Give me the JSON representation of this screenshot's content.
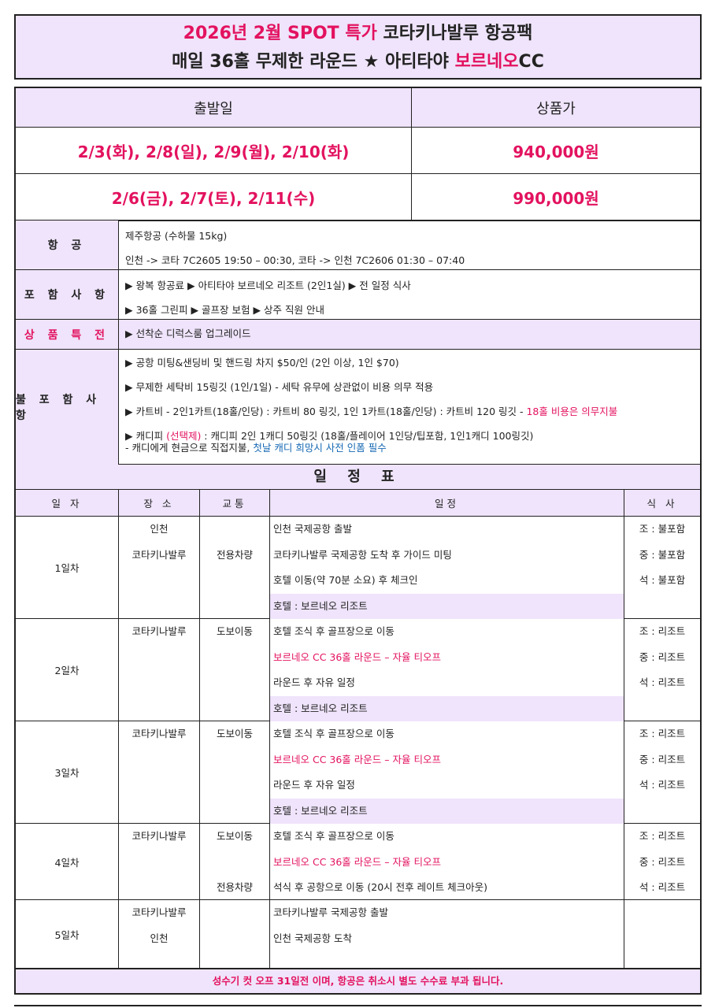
{
  "title": {
    "line1_accent": "2026년 2월 SPOT 특가",
    "line1_rest": " 코타키나발루 항공팩",
    "line2_a": "매일 36홀 무제한 라운드 ★ 아티타야 ",
    "line2_accent": "보르네오",
    "line2_b": "CC"
  },
  "price_table": {
    "headers": [
      "출발일",
      "상품가"
    ],
    "rows": [
      {
        "dates": "2/3(화), 2/8(일), 2/9(월), 2/10(화)",
        "price": "940,000원"
      },
      {
        "dates": "2/6(금), 2/7(토), 2/11(수)",
        "price": "990,000원"
      }
    ]
  },
  "info": {
    "air": {
      "label": "항 공",
      "lines": [
        "제주항공 (수하물 15kg)",
        "인천 -> 코타 7C2605 19:50 – 00:30, 코타 -> 인천 7C2606 01:30 – 07:40"
      ]
    },
    "included": {
      "label": "포 함 사 항",
      "lines": [
        "▶ 왕복 항공료 ▶ 아티타야 보르네오 리조트 (2인1실) ▶ 전 일정 식사",
        "▶ 36홀 그린피 ▶ 골프장 보험 ▶ 상주 직원 안내"
      ]
    },
    "benefit": {
      "label": "상 품 특 전",
      "lines": [
        "▶ 선착순 디럭스룸 업그레이드"
      ]
    },
    "excluded": {
      "label": "불 포 함 사 항",
      "l1": "▶ 공항 미팅&샌딩비 및 핸드링 차지 $50/인 (2인 이상, 1인 $70)",
      "l2": "▶ 무제한 세탁비 15링깃 (1인/1일) - 세탁 유무에 상관없이 비용 의무 적용",
      "l3": "▶ 카트비 - 2인1카트(18홀/인당) : 카트비 80 링깃, 1인 1카트(18홀/인당) : 카트비 120 링깃 - ",
      "l3_accent": "18홀 비용은 의무지불",
      "l4_a": "▶ 캐디피 ",
      "l4_accent": "(선택제)",
      "l4_b": " : 캐디피 2인 1캐디 50링깃 (18홀/플레이어 1인당/팁포함, 1인1캐디 100링깃)",
      "l5_a": " - 캐디에게 현금으로 직접지불, ",
      "l5_blue": "첫날 캐디 희망시 사전 인폼 필수"
    }
  },
  "schedule": {
    "title": "일 정 표",
    "columns": [
      "일 자",
      "장 소",
      "교통",
      "일정",
      "식 사"
    ],
    "days": [
      {
        "day": "1일차",
        "place": [
          "인천",
          "코타키나발루",
          "",
          ""
        ],
        "transport": [
          "",
          "전용차량",
          "",
          ""
        ],
        "items": [
          {
            "t": "인천 국제공항 출발"
          },
          {
            "t": "코타키나발루 국제공항 도착 후 가이드 미팅"
          },
          {
            "t": "호텔 이동(약 70분 소요) 후 체크인"
          },
          {
            "t": "호텔 : 보르네오 리조트",
            "hotel": true
          }
        ],
        "meals": [
          "조 : 불포함",
          "중 : 불포함",
          "석 : 불포함",
          ""
        ]
      },
      {
        "day": "2일차",
        "place": [
          "코타키나발루",
          "",
          "",
          ""
        ],
        "transport": [
          "도보이동",
          "",
          "",
          ""
        ],
        "items": [
          {
            "t": "호텔 조식 후 골프장으로 이동"
          },
          {
            "t": "보르네오 CC 36홀 라운드 – 자율 티오프",
            "red": true
          },
          {
            "t": "라운드 후 자유 일정"
          },
          {
            "t": "호텔 : 보르네오 리조트",
            "hotel": true
          }
        ],
        "meals": [
          "조 : 리조트",
          "중 : 리조트",
          "석 : 리조트",
          ""
        ]
      },
      {
        "day": "3일차",
        "place": [
          "코타키나발루",
          "",
          "",
          ""
        ],
        "transport": [
          "도보이동",
          "",
          "",
          ""
        ],
        "items": [
          {
            "t": "호텔 조식 후 골프장으로 이동"
          },
          {
            "t": "보르네오 CC 36홀 라운드 – 자율 티오프",
            "red": true
          },
          {
            "t": "라운드 후 자유 일정"
          },
          {
            "t": "호텔 : 보르네오 리조트",
            "hotel": true
          }
        ],
        "meals": [
          "조 : 리조트",
          "중 : 리조트",
          "석 : 리조트",
          ""
        ]
      },
      {
        "day": "4일차",
        "place": [
          "코타키나발루",
          "",
          ""
        ],
        "transport": [
          "도보이동",
          "",
          "전용차량"
        ],
        "items": [
          {
            "t": "호텔 조식 후 골프장으로 이동"
          },
          {
            "t": "보르네오 CC 36홀 라운드 – 자율 티오프",
            "red": true
          },
          {
            "t": "석식 후 공항으로 이동 (20시 전후 레이트 체크아웃)"
          }
        ],
        "meals": [
          "조 : 리조트",
          "중 : 리조트",
          "석 : 리조트"
        ]
      },
      {
        "day": "5일차",
        "place": [
          "코타키나발루",
          "인천"
        ],
        "transport": [
          "",
          ""
        ],
        "items": [
          {
            "t": "코타키나발루 국제공항 출발"
          },
          {
            "t": "인천 국제공항 도착"
          }
        ],
        "meals": [
          "",
          ""
        ]
      }
    ]
  },
  "footer": "성수기 컷 오프 31일전 이며, 항공은 취소시 별도 수수료 부과 됩니다.",
  "colors": {
    "accent": "#e3125f",
    "highlight_bg": "#efe4fb",
    "link_blue": "#1769b3"
  }
}
